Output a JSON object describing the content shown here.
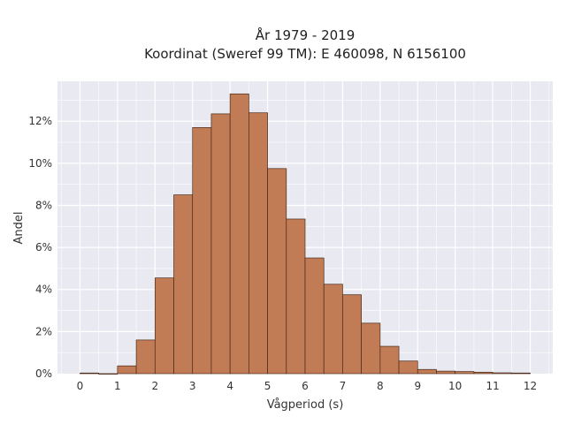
{
  "chart_data": {
    "type": "bar",
    "title_lines": [
      "År 1979 - 2019",
      "Koordinat (Sweref 99 TM): E 460098, N 6156100"
    ],
    "xlabel": "Vågperiod (s)",
    "ylabel": "Andel",
    "x_ticks": [
      "0",
      "1",
      "2",
      "3",
      "4",
      "5",
      "6",
      "7",
      "8",
      "9",
      "10",
      "11",
      "12"
    ],
    "y_ticks": [
      "0%",
      "2%",
      "4%",
      "6%",
      "8%",
      "10%",
      "12%"
    ],
    "y_tick_values": [
      0,
      2,
      4,
      6,
      8,
      10,
      12
    ],
    "xlim": [
      -0.6,
      12.6
    ],
    "ylim": [
      0,
      13.9
    ],
    "bin_width": 0.5,
    "bins": [
      {
        "x0": 0.0,
        "value": 0.03
      },
      {
        "x0": 0.5,
        "value": 0.0
      },
      {
        "x0": 1.0,
        "value": 0.37
      },
      {
        "x0": 1.5,
        "value": 1.6
      },
      {
        "x0": 2.0,
        "value": 4.55
      },
      {
        "x0": 2.5,
        "value": 8.5
      },
      {
        "x0": 3.0,
        "value": 11.7
      },
      {
        "x0": 3.5,
        "value": 12.35
      },
      {
        "x0": 4.0,
        "value": 13.3
      },
      {
        "x0": 4.5,
        "value": 12.4
      },
      {
        "x0": 5.0,
        "value": 9.75
      },
      {
        "x0": 5.5,
        "value": 7.35
      },
      {
        "x0": 6.0,
        "value": 5.5
      },
      {
        "x0": 6.5,
        "value": 4.25
      },
      {
        "x0": 7.0,
        "value": 3.75
      },
      {
        "x0": 7.5,
        "value": 2.4
      },
      {
        "x0": 8.0,
        "value": 1.3
      },
      {
        "x0": 8.5,
        "value": 0.6
      },
      {
        "x0": 9.0,
        "value": 0.2
      },
      {
        "x0": 9.5,
        "value": 0.12
      },
      {
        "x0": 10.0,
        "value": 0.1
      },
      {
        "x0": 10.5,
        "value": 0.07
      },
      {
        "x0": 11.0,
        "value": 0.04
      },
      {
        "x0": 11.5,
        "value": 0.03
      }
    ],
    "grid": true,
    "colors": {
      "bar_fill": "#c17c56",
      "bar_stroke": "#4a2a1a",
      "plot_bg": "#e9e9f1",
      "grid": "#ffffff"
    }
  }
}
